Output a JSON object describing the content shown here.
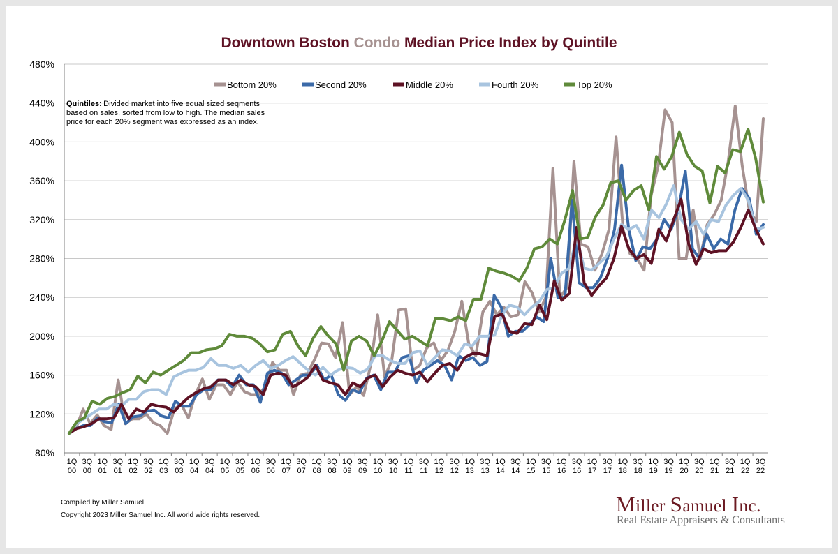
{
  "title": {
    "part1": "Downtown Boston ",
    "part2": "Condo",
    "part3": " Median Price Index by Quintile"
  },
  "note": {
    "lead": "Quintiles",
    "text": ": Divided market into five equal sized seqments based on sales, sorted from low to high. The median sales price for each 20% segment was expressed as an index."
  },
  "footer": {
    "compiled": "Compiled by Miller Samuel",
    "copyright": "Copyright 2023 Miller Samuel Inc.  All world wide rights reserved."
  },
  "logo": {
    "name_initial_1": "M",
    "name_rest_1": "iller ",
    "name_initial_2": "S",
    "name_rest_2": "amuel ",
    "name_initial_3": "I",
    "name_rest_3": "nc.",
    "tagline": "Real Estate Appraisers & Consultants"
  },
  "colors": {
    "bottom": "#a69291",
    "second": "#3b6aa8",
    "middle": "#5e1224",
    "fourth": "#a8c4df",
    "top": "#5f8a3a",
    "grid": "#c8c8c8",
    "title": "#5e1224",
    "title_highlight": "#a69291"
  },
  "chart_data": {
    "type": "line",
    "title": "Downtown Boston Condo Median Price Index by Quintile",
    "ylim": [
      80,
      480
    ],
    "yticks": [
      80,
      120,
      160,
      200,
      240,
      280,
      320,
      360,
      400,
      440,
      480
    ],
    "ytick_suffix": "%",
    "grid": true,
    "legend_position": "top",
    "xtick_labels": [
      [
        "1Q",
        "00"
      ],
      [
        "3Q",
        "00"
      ],
      [
        "1Q",
        "01"
      ],
      [
        "3Q",
        "01"
      ],
      [
        "1Q",
        "02"
      ],
      [
        "3Q",
        "02"
      ],
      [
        "1Q",
        "03"
      ],
      [
        "3Q",
        "03"
      ],
      [
        "1Q",
        "04"
      ],
      [
        "3Q",
        "04"
      ],
      [
        "1Q",
        "05"
      ],
      [
        "3Q",
        "05"
      ],
      [
        "1Q",
        "06"
      ],
      [
        "3Q",
        "06"
      ],
      [
        "1Q",
        "07"
      ],
      [
        "3Q",
        "07"
      ],
      [
        "1Q",
        "08"
      ],
      [
        "3Q",
        "08"
      ],
      [
        "1Q",
        "09"
      ],
      [
        "3Q",
        "09"
      ],
      [
        "1Q",
        "10"
      ],
      [
        "3Q",
        "10"
      ],
      [
        "1Q",
        "11"
      ],
      [
        "3Q",
        "11"
      ],
      [
        "1Q",
        "12"
      ],
      [
        "3Q",
        "12"
      ],
      [
        "1Q",
        "13"
      ],
      [
        "3Q",
        "13"
      ],
      [
        "1Q",
        "14"
      ],
      [
        "3Q",
        "14"
      ],
      [
        "1Q",
        "15"
      ],
      [
        "3Q",
        "15"
      ],
      [
        "1Q",
        "16"
      ],
      [
        "3Q",
        "16"
      ],
      [
        "1Q",
        "17"
      ],
      [
        "3Q",
        "17"
      ],
      [
        "1Q",
        "18"
      ],
      [
        "3Q",
        "18"
      ],
      [
        "1Q",
        "19"
      ],
      [
        "3Q",
        "19"
      ],
      [
        "1Q",
        "20"
      ],
      [
        "3Q",
        "20"
      ],
      [
        "1Q",
        "21"
      ],
      [
        "3Q",
        "21"
      ],
      [
        "1Q",
        "22"
      ],
      [
        "3Q",
        "22"
      ]
    ],
    "x_start": "1Q 2000",
    "x_end": "4Q 2022",
    "series": [
      {
        "name": "Bottom 20%",
        "key": "bottom",
        "values": [
          100,
          106,
          125,
          110,
          119,
          108,
          104,
          155,
          110,
          115,
          115,
          120,
          111,
          108,
          100,
          125,
          130,
          116,
          140,
          156,
          135,
          150,
          150,
          140,
          153,
          143,
          140,
          140,
          148,
          173,
          165,
          165,
          140,
          160,
          162,
          176,
          193,
          192,
          178,
          214,
          140,
          148,
          139,
          170,
          222,
          158,
          175,
          227,
          228,
          165,
          170,
          188,
          193,
          175,
          185,
          205,
          236,
          192,
          180,
          225,
          236,
          222,
          230,
          220,
          222,
          256,
          245,
          225,
          240,
          373,
          240,
          250,
          380,
          295,
          292,
          268,
          285,
          310,
          405,
          310,
          285,
          280,
          268,
          345,
          375,
          433,
          420,
          280,
          280,
          330,
          280,
          315,
          325,
          340,
          380,
          437,
          375,
          330,
          318,
          424
        ]
      },
      {
        "name": "Second 20%",
        "key": "second",
        "values": [
          100,
          105,
          108,
          108,
          116,
          112,
          111,
          130,
          110,
          117,
          118,
          123,
          124,
          118,
          116,
          133,
          128,
          128,
          140,
          145,
          145,
          155,
          155,
          148,
          160,
          150,
          150,
          132,
          162,
          165,
          162,
          150,
          155,
          160,
          160,
          170,
          155,
          160,
          140,
          134,
          145,
          142,
          157,
          160,
          145,
          163,
          163,
          178,
          180,
          152,
          165,
          170,
          175,
          170,
          155,
          180,
          175,
          178,
          170,
          174,
          242,
          230,
          200,
          205,
          205,
          212,
          220,
          215,
          280,
          240,
          240,
          340,
          255,
          250,
          250,
          260,
          280,
          310,
          376,
          310,
          278,
          292,
          290,
          300,
          320,
          310,
          330,
          370,
          290,
          280,
          305,
          290,
          300,
          295,
          330,
          352,
          342,
          305,
          315
        ]
      },
      {
        "name": "Middle 20%",
        "key": "middle",
        "values": [
          100,
          105,
          107,
          110,
          115,
          115,
          116,
          130,
          115,
          125,
          122,
          130,
          128,
          127,
          122,
          130,
          137,
          142,
          146,
          148,
          155,
          155,
          150,
          155,
          150,
          148,
          140,
          160,
          162,
          160,
          148,
          152,
          158,
          170,
          155,
          152,
          150,
          140,
          152,
          148,
          157,
          160,
          148,
          158,
          165,
          162,
          160,
          163,
          153,
          162,
          170,
          172,
          165,
          178,
          182,
          182,
          180,
          220,
          223,
          205,
          203,
          213,
          212,
          232,
          217,
          257,
          237,
          244,
          312,
          255,
          242,
          252,
          260,
          280,
          313,
          290,
          280,
          284,
          275,
          310,
          298,
          320,
          341,
          295,
          274,
          290,
          286,
          288,
          288,
          297,
          312,
          330,
          310,
          295
        ]
      },
      {
        "name": "Fourth 20%",
        "key": "fourth",
        "values": [
          100,
          110,
          115,
          120,
          125,
          125,
          130,
          128,
          135,
          135,
          143,
          145,
          145,
          140,
          158,
          162,
          165,
          165,
          168,
          177,
          170,
          170,
          167,
          170,
          163,
          170,
          175,
          167,
          170,
          175,
          179,
          172,
          165,
          160,
          168,
          160,
          165,
          168,
          167,
          162,
          166,
          180,
          180,
          175,
          172,
          172,
          183,
          185,
          170,
          178,
          186,
          185,
          180,
          192,
          190,
          200,
          200,
          201,
          222,
          232,
          230,
          222,
          230,
          236,
          248,
          250,
          265,
          270,
          302,
          270,
          268,
          275,
          282,
          300,
          315,
          310,
          314,
          300,
          330,
          322,
          336,
          355,
          320,
          310,
          318,
          305,
          320,
          318,
          335,
          345,
          352,
          340,
          310,
          312
        ]
      },
      {
        "name": "Top 20%",
        "key": "top",
        "values": [
          100,
          112,
          116,
          133,
          130,
          136,
          138,
          142,
          145,
          159,
          152,
          163,
          160,
          165,
          170,
          175,
          183,
          183,
          186,
          187,
          190,
          202,
          200,
          200,
          198,
          192,
          184,
          186,
          202,
          205,
          190,
          180,
          198,
          210,
          200,
          192,
          165,
          195,
          200,
          195,
          180,
          195,
          215,
          206,
          197,
          200,
          195,
          190,
          218,
          218,
          216,
          220,
          216,
          238,
          238,
          270,
          267,
          265,
          262,
          257,
          270,
          290,
          292,
          300,
          295,
          320,
          350,
          300,
          302,
          323,
          335,
          358,
          360,
          340,
          350,
          355,
          330,
          385,
          372,
          385,
          410,
          387,
          375,
          370,
          337,
          375,
          368,
          392,
          390,
          413,
          383,
          338
        ]
      }
    ]
  }
}
